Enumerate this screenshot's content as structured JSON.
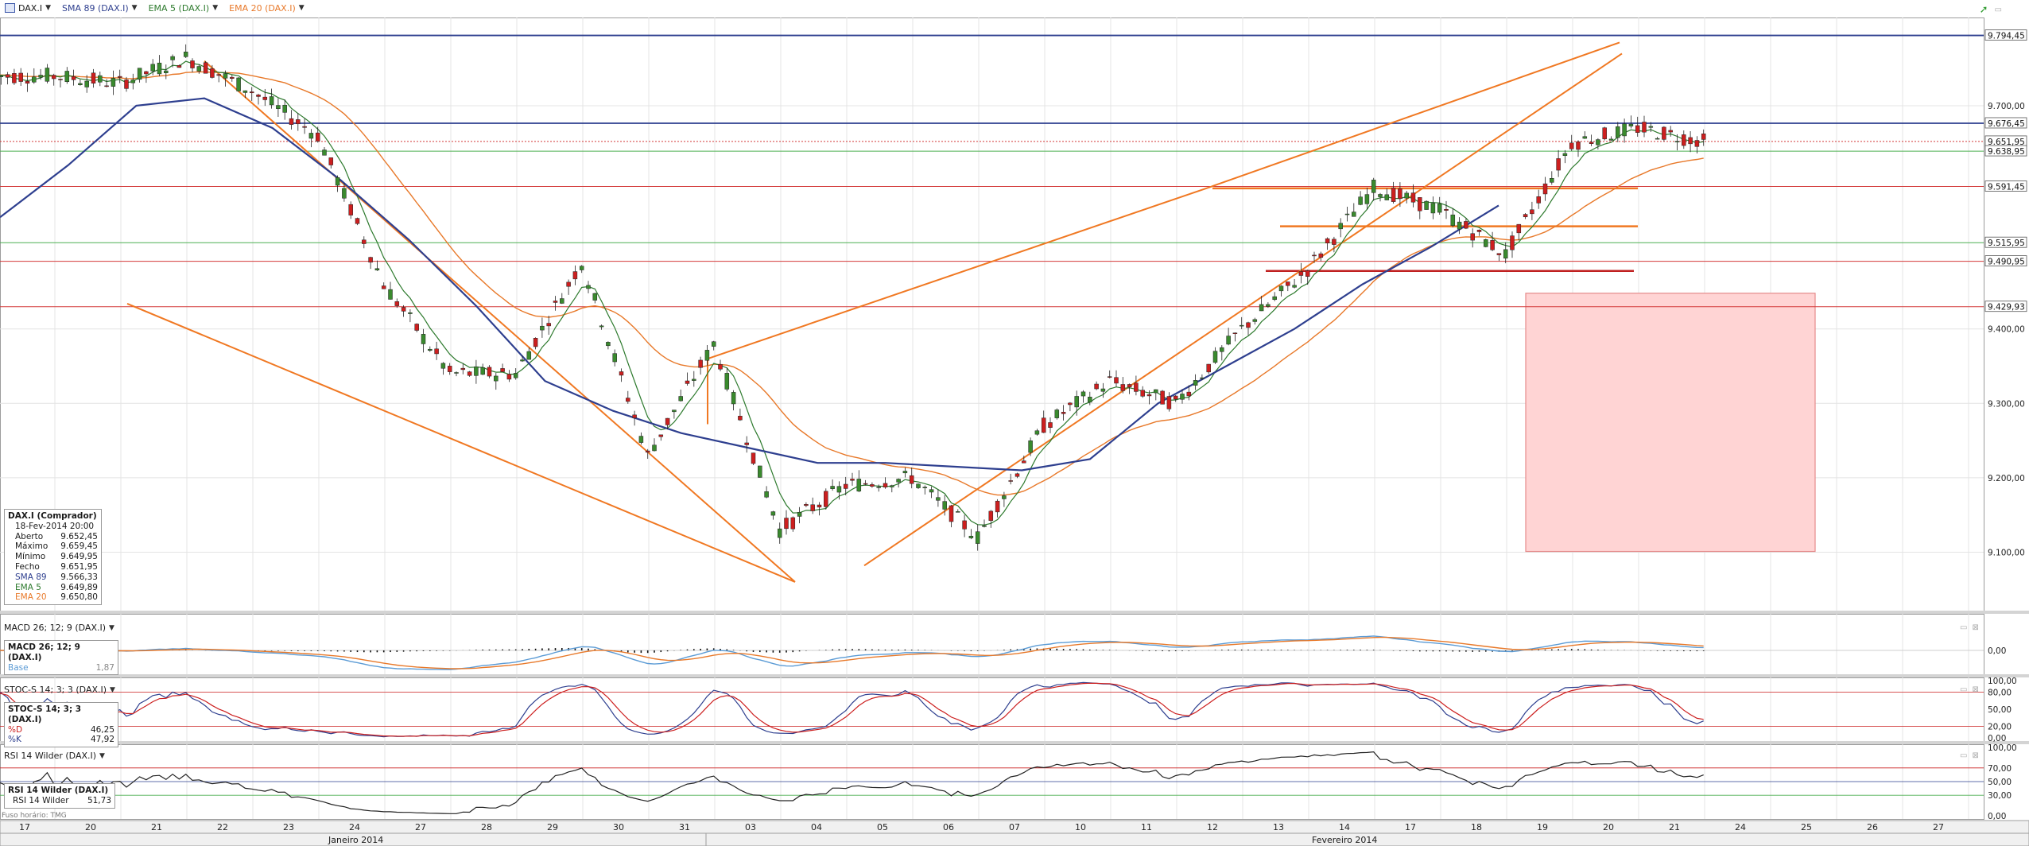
{
  "toolbar": {
    "instrument": "DAX.I",
    "sma_label": "SMA 89 (DAX.I)",
    "ema5_label": "EMA 5 (DAX.I)",
    "ema20_label": "EMA 20 (DAX.I)"
  },
  "colors": {
    "up_candle": "#3a8a2e",
    "down_candle": "#cc1f1f",
    "sma": "#2e3f8f",
    "ema5": "#2d7a2d",
    "ema20": "#e8792a",
    "trendline": "#f07822",
    "resistance": "#2e3f8f",
    "support_red": "#d43a3a",
    "support_green": "#4caf50",
    "target_zone": "#ffd4d4",
    "macd": "#5b9bd5",
    "signal": "#e8792a",
    "stoch_k": "#2e3f8f",
    "stoch_d": "#cc1f1f",
    "rsi": "#222222"
  },
  "chart_data": [
    {
      "type": "candlestick",
      "x_categories": [
        "17",
        "20",
        "21",
        "22",
        "23",
        "24",
        "27",
        "28",
        "29",
        "30",
        "31",
        "03",
        "04",
        "05",
        "06",
        "07",
        "10",
        "11",
        "12",
        "13",
        "14",
        "17",
        "18",
        "19",
        "20",
        "21",
        "24",
        "25",
        "26",
        "27"
      ],
      "months": [
        "Janeiro 2014",
        "Fevereiro 2014"
      ],
      "y_ticks": [
        "9.700,00",
        "9.400,00",
        "9.300,00",
        "9.200,00",
        "9.100,00"
      ],
      "ylim": [
        9030,
        9810
      ],
      "price_levels": [
        {
          "label": "9.794,45",
          "value": 9794.45,
          "style": "resistance"
        },
        {
          "label": "9.676,45",
          "value": 9676.45,
          "style": "resistance"
        },
        {
          "label": "9.651,95",
          "value": 9651.95,
          "style": "current"
        },
        {
          "label": "9.638,95",
          "value": 9638.95,
          "style": "green"
        },
        {
          "label": "9.591,45",
          "value": 9591.45,
          "style": "red"
        },
        {
          "label": "9.515,95",
          "value": 9515.95,
          "style": "green"
        },
        {
          "label": "9.490,95",
          "value": 9490.95,
          "style": "red"
        },
        {
          "label": "9.429,93",
          "value": 9429.93,
          "style": "red"
        }
      ],
      "daily_closes": [
        9740,
        9730,
        9765,
        9720,
        9660,
        9460,
        9340,
        9340,
        9490,
        9230,
        9380,
        9130,
        9190,
        9200,
        9120,
        9270,
        9330,
        9300,
        9400,
        9480,
        9590,
        9560,
        9500,
        9650,
        9670,
        9652
      ],
      "sma89": [
        9550,
        9620,
        9700,
        9710,
        9670,
        9600,
        9520,
        9430,
        9330,
        9290,
        9260,
        9240,
        9220,
        9220,
        9215,
        9210,
        9225,
        9300,
        9350,
        9400,
        9460,
        9510,
        9566
      ],
      "last_bar": {
        "title": "DAX.I (Comprador)",
        "date": "18-Fev-2014 20:00",
        "rows": [
          {
            "label": "Aberto",
            "value": "9.652,45"
          },
          {
            "label": "Máximo",
            "value": "9.659,45"
          },
          {
            "label": "Mínimo",
            "value": "9.649,95"
          },
          {
            "label": "Fecho",
            "value": "9.651,95"
          },
          {
            "label": "SMA 89",
            "value": "9.566,33"
          },
          {
            "label": "EMA 5",
            "value": "9.649,89"
          },
          {
            "label": "EMA 20",
            "value": "9.650,80"
          }
        ]
      }
    },
    {
      "type": "line",
      "title": "MACD 26; 12; 9 (DAX.I)",
      "y_ticks": [
        "0,00"
      ],
      "legend": {
        "title": "MACD 26; 12; 9 (DAX.I)",
        "rows": [
          {
            "label": "Base",
            "value": "1,87"
          }
        ]
      }
    },
    {
      "type": "line",
      "title": "STOC-S 14; 3; 3 (DAX.I)",
      "y_ticks": [
        "100,00",
        "80,00",
        "50,00",
        "20,00",
        "0,00"
      ],
      "legend": {
        "title": "STOC-S 14; 3; 3 (DAX.I)",
        "rows": [
          {
            "label": "%D",
            "value": "46,25"
          },
          {
            "label": "%K",
            "value": "47,92"
          }
        ]
      }
    },
    {
      "type": "line",
      "title": "RSI 14 Wilder (DAX.I)",
      "y_ticks": [
        "100,00",
        "70,00",
        "50,00",
        "30,00",
        "0,00"
      ],
      "legend": {
        "title": "RSI 14 Wilder (DAX.I)",
        "rows": [
          {
            "label": "RSI 14 Wilder",
            "value": "51,73"
          }
        ]
      }
    }
  ],
  "footer": {
    "timezone": "Fuso horário: TMG"
  }
}
